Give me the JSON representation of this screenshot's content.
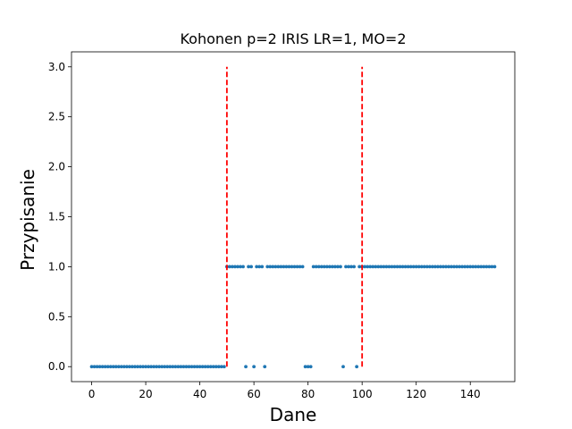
{
  "chart_data": {
    "type": "scatter",
    "title": "Kohonen p=2 IRIS LR=1, MO=2",
    "xlabel": "Dane",
    "ylabel": "Przypisanie",
    "xlim": [
      -7.45,
      156.45
    ],
    "ylim": [
      -0.15,
      3.15
    ],
    "x_ticks": [
      0,
      20,
      40,
      60,
      80,
      100,
      120,
      140
    ],
    "y_ticks": [
      0.0,
      0.5,
      1.0,
      1.5,
      2.0,
      2.5,
      3.0
    ],
    "x_tick_labels": [
      "0",
      "20",
      "40",
      "60",
      "80",
      "100",
      "120",
      "140"
    ],
    "y_tick_labels": [
      "0.0",
      "0.5",
      "1.0",
      "1.5",
      "2.0",
      "2.5",
      "3.0"
    ],
    "grid": false,
    "series": [
      {
        "color": "#1f77b4",
        "x": [
          0,
          1,
          2,
          3,
          4,
          5,
          6,
          7,
          8,
          9,
          10,
          11,
          12,
          13,
          14,
          15,
          16,
          17,
          18,
          19,
          20,
          21,
          22,
          23,
          24,
          25,
          26,
          27,
          28,
          29,
          30,
          31,
          32,
          33,
          34,
          35,
          36,
          37,
          38,
          39,
          40,
          41,
          42,
          43,
          44,
          45,
          46,
          47,
          48,
          49,
          50,
          51,
          52,
          53,
          54,
          55,
          56,
          57,
          58,
          59,
          60,
          61,
          62,
          63,
          64,
          65,
          66,
          67,
          68,
          69,
          70,
          71,
          72,
          73,
          74,
          75,
          76,
          77,
          78,
          79,
          80,
          81,
          82,
          83,
          84,
          85,
          86,
          87,
          88,
          89,
          90,
          91,
          92,
          93,
          94,
          95,
          96,
          97,
          98,
          99,
          100,
          101,
          102,
          103,
          104,
          105,
          106,
          107,
          108,
          109,
          110,
          111,
          112,
          113,
          114,
          115,
          116,
          117,
          118,
          119,
          120,
          121,
          122,
          123,
          124,
          125,
          126,
          127,
          128,
          129,
          130,
          131,
          132,
          133,
          134,
          135,
          136,
          137,
          138,
          139,
          140,
          141,
          142,
          143,
          144,
          145,
          146,
          147,
          148,
          149
        ],
        "y": [
          0,
          0,
          0,
          0,
          0,
          0,
          0,
          0,
          0,
          0,
          0,
          0,
          0,
          0,
          0,
          0,
          0,
          0,
          0,
          0,
          0,
          0,
          0,
          0,
          0,
          0,
          0,
          0,
          0,
          0,
          0,
          0,
          0,
          0,
          0,
          0,
          0,
          0,
          0,
          0,
          0,
          0,
          0,
          0,
          0,
          0,
          0,
          0,
          0,
          0,
          1,
          1,
          1,
          1,
          1,
          1,
          1,
          0,
          1,
          1,
          0,
          1,
          1,
          1,
          0,
          1,
          1,
          1,
          1,
          1,
          1,
          1,
          1,
          1,
          1,
          1,
          1,
          1,
          1,
          0,
          0,
          0,
          1,
          1,
          1,
          1,
          1,
          1,
          1,
          1,
          1,
          1,
          1,
          0,
          1,
          1,
          1,
          1,
          0,
          1,
          1,
          1,
          1,
          1,
          1,
          1,
          1,
          1,
          1,
          1,
          1,
          1,
          1,
          1,
          1,
          1,
          1,
          1,
          1,
          1,
          1,
          1,
          1,
          1,
          1,
          1,
          1,
          1,
          1,
          1,
          1,
          1,
          1,
          1,
          1,
          1,
          1,
          1,
          1,
          1,
          1,
          1,
          1,
          1,
          1,
          1,
          1,
          1,
          1,
          1
        ]
      }
    ],
    "vlines": [
      {
        "x": 50,
        "y_range": [
          0,
          3
        ],
        "color": "#ff0000",
        "style": "dashed"
      },
      {
        "x": 100,
        "y_range": [
          0,
          3
        ],
        "color": "#ff0000",
        "style": "dashed"
      }
    ]
  }
}
